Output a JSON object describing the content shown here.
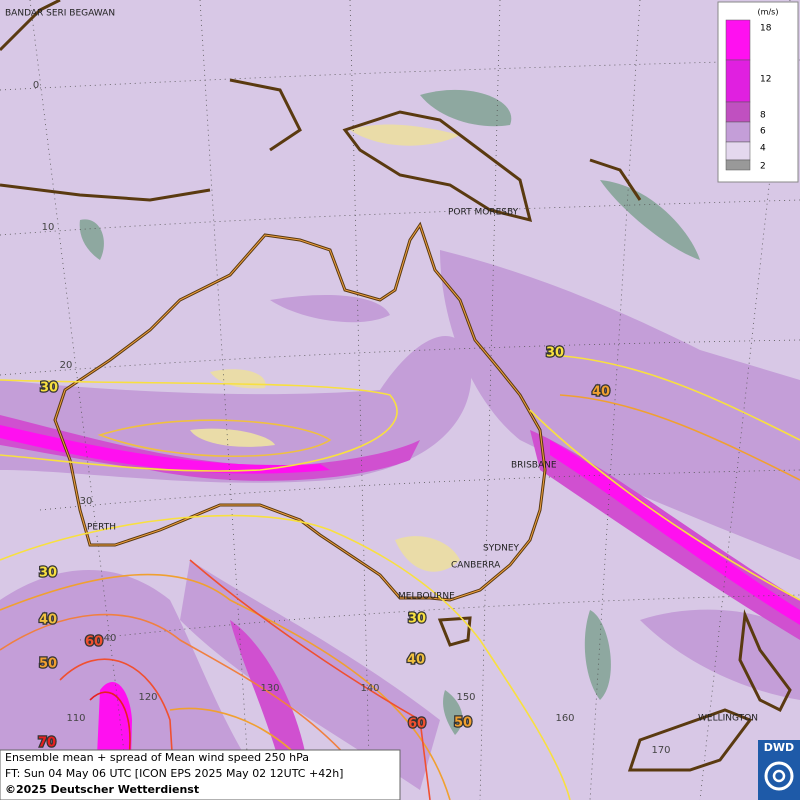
{
  "cities": [
    "BANDAR SERI BEGAWAN",
    "PORT MORESBY",
    "BRISBANE",
    "PERTH",
    "SYDNEY",
    "CANBERRA",
    "MELBOURNE",
    "WELLINGTON"
  ],
  "latitude_labels": [
    "0",
    "10",
    "20",
    "30",
    "40"
  ],
  "longitude_labels": [
    "110",
    "120",
    "130",
    "140",
    "150",
    "160",
    "170"
  ],
  "contour_labels": [
    "30",
    "40",
    "30",
    "30",
    "40",
    "50",
    "60",
    "70",
    "30",
    "40",
    "60",
    "50"
  ],
  "legend": {
    "unit": "(m/s)",
    "levels": [
      "18",
      "12",
      "8",
      "6",
      "4",
      "2"
    ]
  },
  "footer": {
    "line1": "Ensemble mean + spread of Mean wind speed 250 hPa",
    "line2": "FT: Sun 04 May 06 UTC [ICON EPS 2025 May 02 12UTC +42h]",
    "line3": "©2025 Deutscher Wetterdienst"
  },
  "logo": "DWD"
}
